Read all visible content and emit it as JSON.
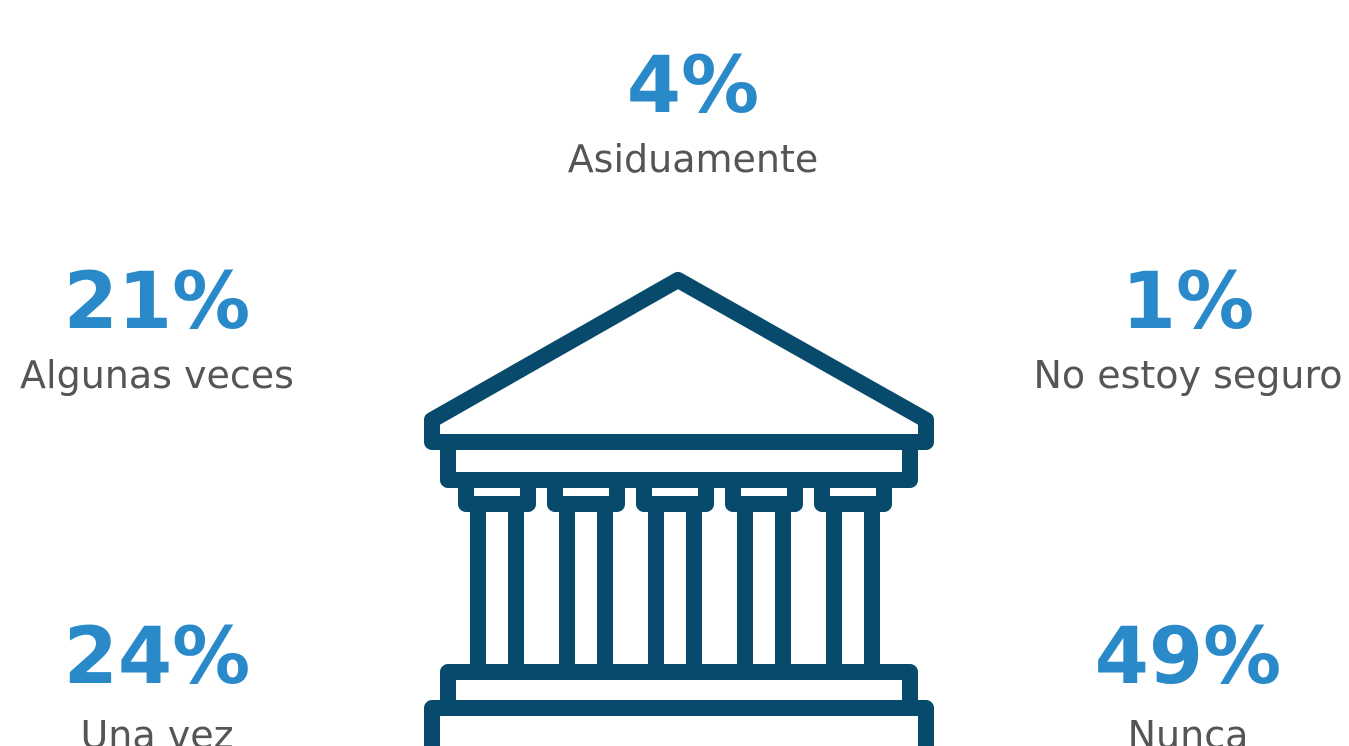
{
  "stats": [
    {
      "percent": "4%",
      "label": "Asiduamente"
    },
    {
      "percent": "21%",
      "label": "Algunas veces"
    },
    {
      "percent": "1%",
      "label": "No estoy seguro"
    },
    {
      "percent": "24%",
      "label": "Una vez"
    },
    {
      "percent": "49%",
      "label": "Nunca"
    }
  ]
}
